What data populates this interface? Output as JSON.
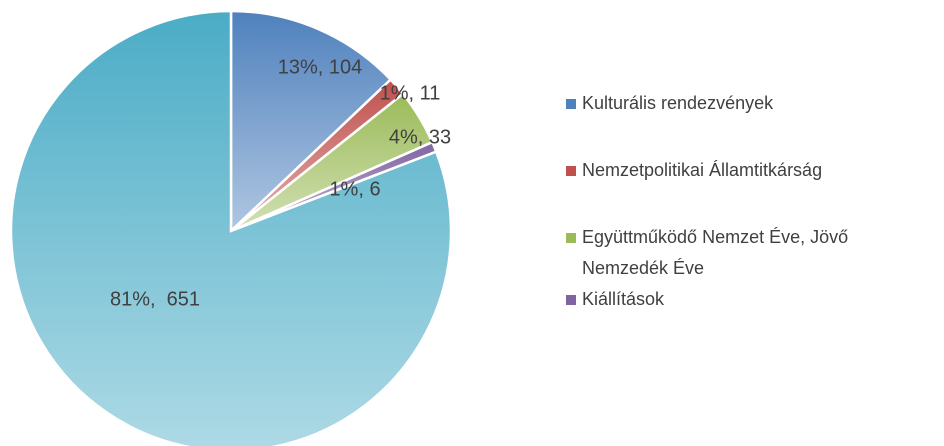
{
  "chart_data": {
    "type": "pie",
    "categories": [
      "Kulturális rendezvények",
      "Nemzetpolitikai Államtitkárság",
      "Együttműködő Nemzet Éve, Jövő Nemzedék Éve",
      "Kiállítások",
      null
    ],
    "values": [
      104,
      11,
      33,
      6,
      651
    ],
    "value_labels": [
      "13%, 104",
      "1%, 11",
      "4%, 33",
      "1%, 6",
      "81%,  651"
    ],
    "colors": [
      "#4f81bd",
      "#c0504d",
      "#9bbb59",
      "#8064a2",
      "#4bacc6"
    ]
  }
}
